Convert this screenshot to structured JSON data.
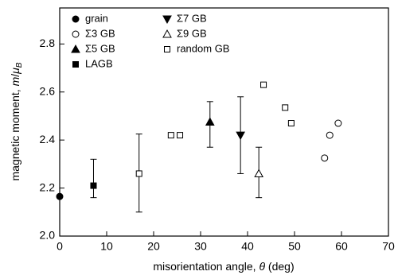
{
  "chart_data": {
    "type": "scatter",
    "xlabel": [
      "misorientation angle, ",
      "θ",
      " (deg)"
    ],
    "ylabel": [
      "magnetic moment, ",
      "m",
      "/",
      "μ",
      "B"
    ],
    "xlim": [
      0,
      70
    ],
    "xticks": [
      0,
      10,
      20,
      30,
      40,
      50,
      60,
      70
    ],
    "ylim": [
      2.0,
      2.95
    ],
    "yticks": [
      {
        "value": 2.0,
        "label": "2.0"
      },
      2.2,
      2.4,
      2.6,
      2.8
    ],
    "legend": "upper left",
    "series": [
      {
        "name": "grain",
        "marker": "circle",
        "filled": true,
        "color": "#000000",
        "x": [
          0
        ],
        "values": [
          2.165
        ],
        "err_low": [
          null
        ],
        "err_high": [
          null
        ]
      },
      {
        "name": "Σ3 GB",
        "marker": "circle",
        "filled": false,
        "color": "#000000",
        "x": [
          56.4,
          57.5,
          59.3
        ],
        "values": [
          2.325,
          2.42,
          2.47
        ],
        "err_low": [
          null,
          null,
          null
        ],
        "err_high": [
          null,
          null,
          null
        ]
      },
      {
        "name": "Σ5 GB",
        "marker": "triangle",
        "filled": true,
        "color": "#000000",
        "x": [
          32
        ],
        "values": [
          2.475
        ],
        "err_low": [
          0.105
        ],
        "err_high": [
          0.085
        ]
      },
      {
        "name": "LAGB",
        "marker": "square",
        "filled": true,
        "color": "#000000",
        "x": [
          7.2
        ],
        "values": [
          2.21
        ],
        "err_low": [
          0.05
        ],
        "err_high": [
          0.11
        ]
      },
      {
        "name": "Σ7 GB",
        "marker": "triangle-down",
        "filled": true,
        "color": "#000000",
        "x": [
          38.5
        ],
        "values": [
          2.42
        ],
        "err_low": [
          0.16
        ],
        "err_high": [
          0.16
        ]
      },
      {
        "name": "Σ9 GB",
        "marker": "triangle",
        "filled": false,
        "color": "#000000",
        "x": [
          42.4
        ],
        "values": [
          2.26
        ],
        "err_low": [
          0.1
        ],
        "err_high": [
          0.11
        ]
      },
      {
        "name": "random GB",
        "marker": "square",
        "filled": false,
        "color": "#000000",
        "x": [
          16.9,
          23.7,
          25.6,
          43.4,
          48.0,
          49.3
        ],
        "values": [
          2.26,
          2.42,
          2.42,
          2.63,
          2.535,
          2.47
        ],
        "err_low": [
          0.16,
          null,
          null,
          null,
          null,
          null
        ],
        "err_high": [
          0.165,
          null,
          null,
          null,
          null,
          null
        ]
      }
    ]
  }
}
